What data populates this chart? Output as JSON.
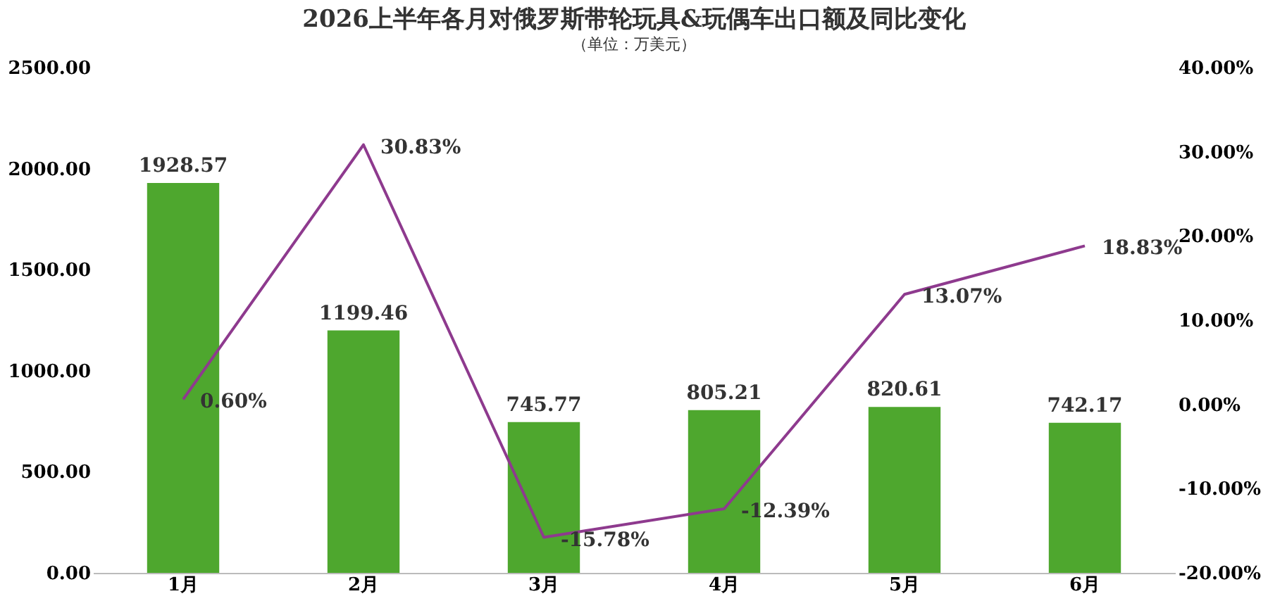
{
  "chart_data": {
    "type": "bar",
    "title": "2026上半年各月对俄罗斯带轮玩具&玩偶车出口额及同比变化",
    "subtitle": "（单位：万美元）",
    "categories": [
      "1月",
      "2月",
      "3月",
      "4月",
      "5月",
      "6月"
    ],
    "series": [
      {
        "color": "#4ea72e",
        "values": [
          1928.57,
          1199.46,
          745.77,
          805.21,
          820.61,
          742.17
        ],
        "value_labels": [
          "1928.57",
          "1199.46",
          "745.77",
          "805.21",
          "820.61",
          "742.17"
        ]
      },
      {
        "type": "line",
        "axis": "y2",
        "color": "#8e3a8e",
        "values": [
          0.6,
          30.83,
          -15.78,
          -12.39,
          13.07,
          18.83
        ],
        "value_labels": [
          "0.60%",
          "30.83%",
          "-15.78%",
          "-12.39%",
          "13.07%",
          "18.83%"
        ]
      }
    ],
    "ylim": [
      0,
      2500
    ],
    "yticks": [
      {
        "value": 0,
        "label": "0.00"
      },
      {
        "value": 500,
        "label": "500.00"
      },
      {
        "value": 1000,
        "label": "1000.00"
      },
      {
        "value": 1500,
        "label": "1500.00"
      },
      {
        "value": 2000,
        "label": "2000.00"
      },
      {
        "value": 2500,
        "label": "2500.00"
      }
    ],
    "y2lim": [
      -20,
      40
    ],
    "y2ticks": [
      {
        "value": -20,
        "label": "-20.00%"
      },
      {
        "value": -10,
        "label": "-10.00%"
      },
      {
        "value": 0,
        "label": "0.00%"
      },
      {
        "value": 10,
        "label": "10.00%"
      },
      {
        "value": 20,
        "label": "20.00%"
      },
      {
        "value": 30,
        "label": "30.00%"
      },
      {
        "value": 40,
        "label": "40.00%"
      }
    ],
    "grid": false
  }
}
